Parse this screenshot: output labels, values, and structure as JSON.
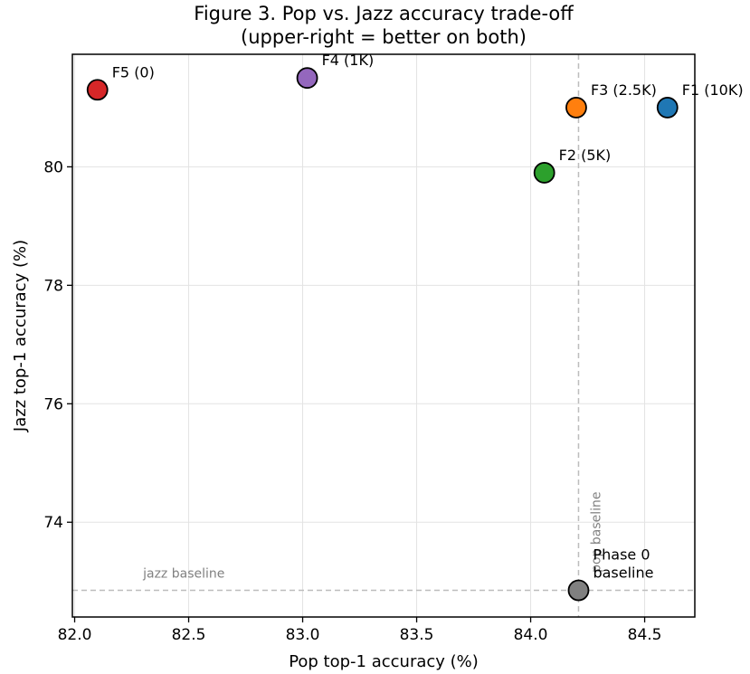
{
  "chart_data": {
    "type": "scatter",
    "title": [
      "Figure 3. Pop vs. Jazz accuracy trade-off",
      "(upper-right = better on both)"
    ],
    "xlabel": "Pop top-1 accuracy (%)",
    "ylabel": "Jazz top-1 accuracy (%)",
    "xlim": [
      81.99,
      84.72
    ],
    "ylim": [
      72.4,
      81.9
    ],
    "xticks": [
      82.0,
      82.5,
      83.0,
      83.5,
      84.0,
      84.5
    ],
    "xtick_labels": [
      "82.0",
      "82.5",
      "83.0",
      "83.5",
      "84.0",
      "84.5"
    ],
    "yticks": [
      74,
      76,
      78,
      80
    ],
    "ytick_labels": [
      "74",
      "76",
      "78",
      "80"
    ],
    "grid": true,
    "points": [
      {
        "label": "F1 (10K)",
        "x": 84.6,
        "y": 81.0,
        "color": "#1f77b4"
      },
      {
        "label": "F2 (5K)",
        "x": 84.06,
        "y": 79.9,
        "color": "#2ca02c"
      },
      {
        "label": "F3 (2.5K)",
        "x": 84.2,
        "y": 81.0,
        "color": "#ff7f0e"
      },
      {
        "label": "F4 (1K)",
        "x": 83.02,
        "y": 81.5,
        "color": "#9467bd"
      },
      {
        "label": "F5 (0)",
        "x": 82.1,
        "y": 81.3,
        "color": "#d62728"
      },
      {
        "label": "Phase 0\nbaseline",
        "x": 84.21,
        "y": 72.85,
        "color": "#808080"
      }
    ],
    "reference_lines": [
      {
        "orientation": "vertical",
        "value": 84.21,
        "label": "pop baseline"
      },
      {
        "orientation": "horizontal",
        "value": 72.85,
        "label": "jazz baseline"
      }
    ]
  }
}
